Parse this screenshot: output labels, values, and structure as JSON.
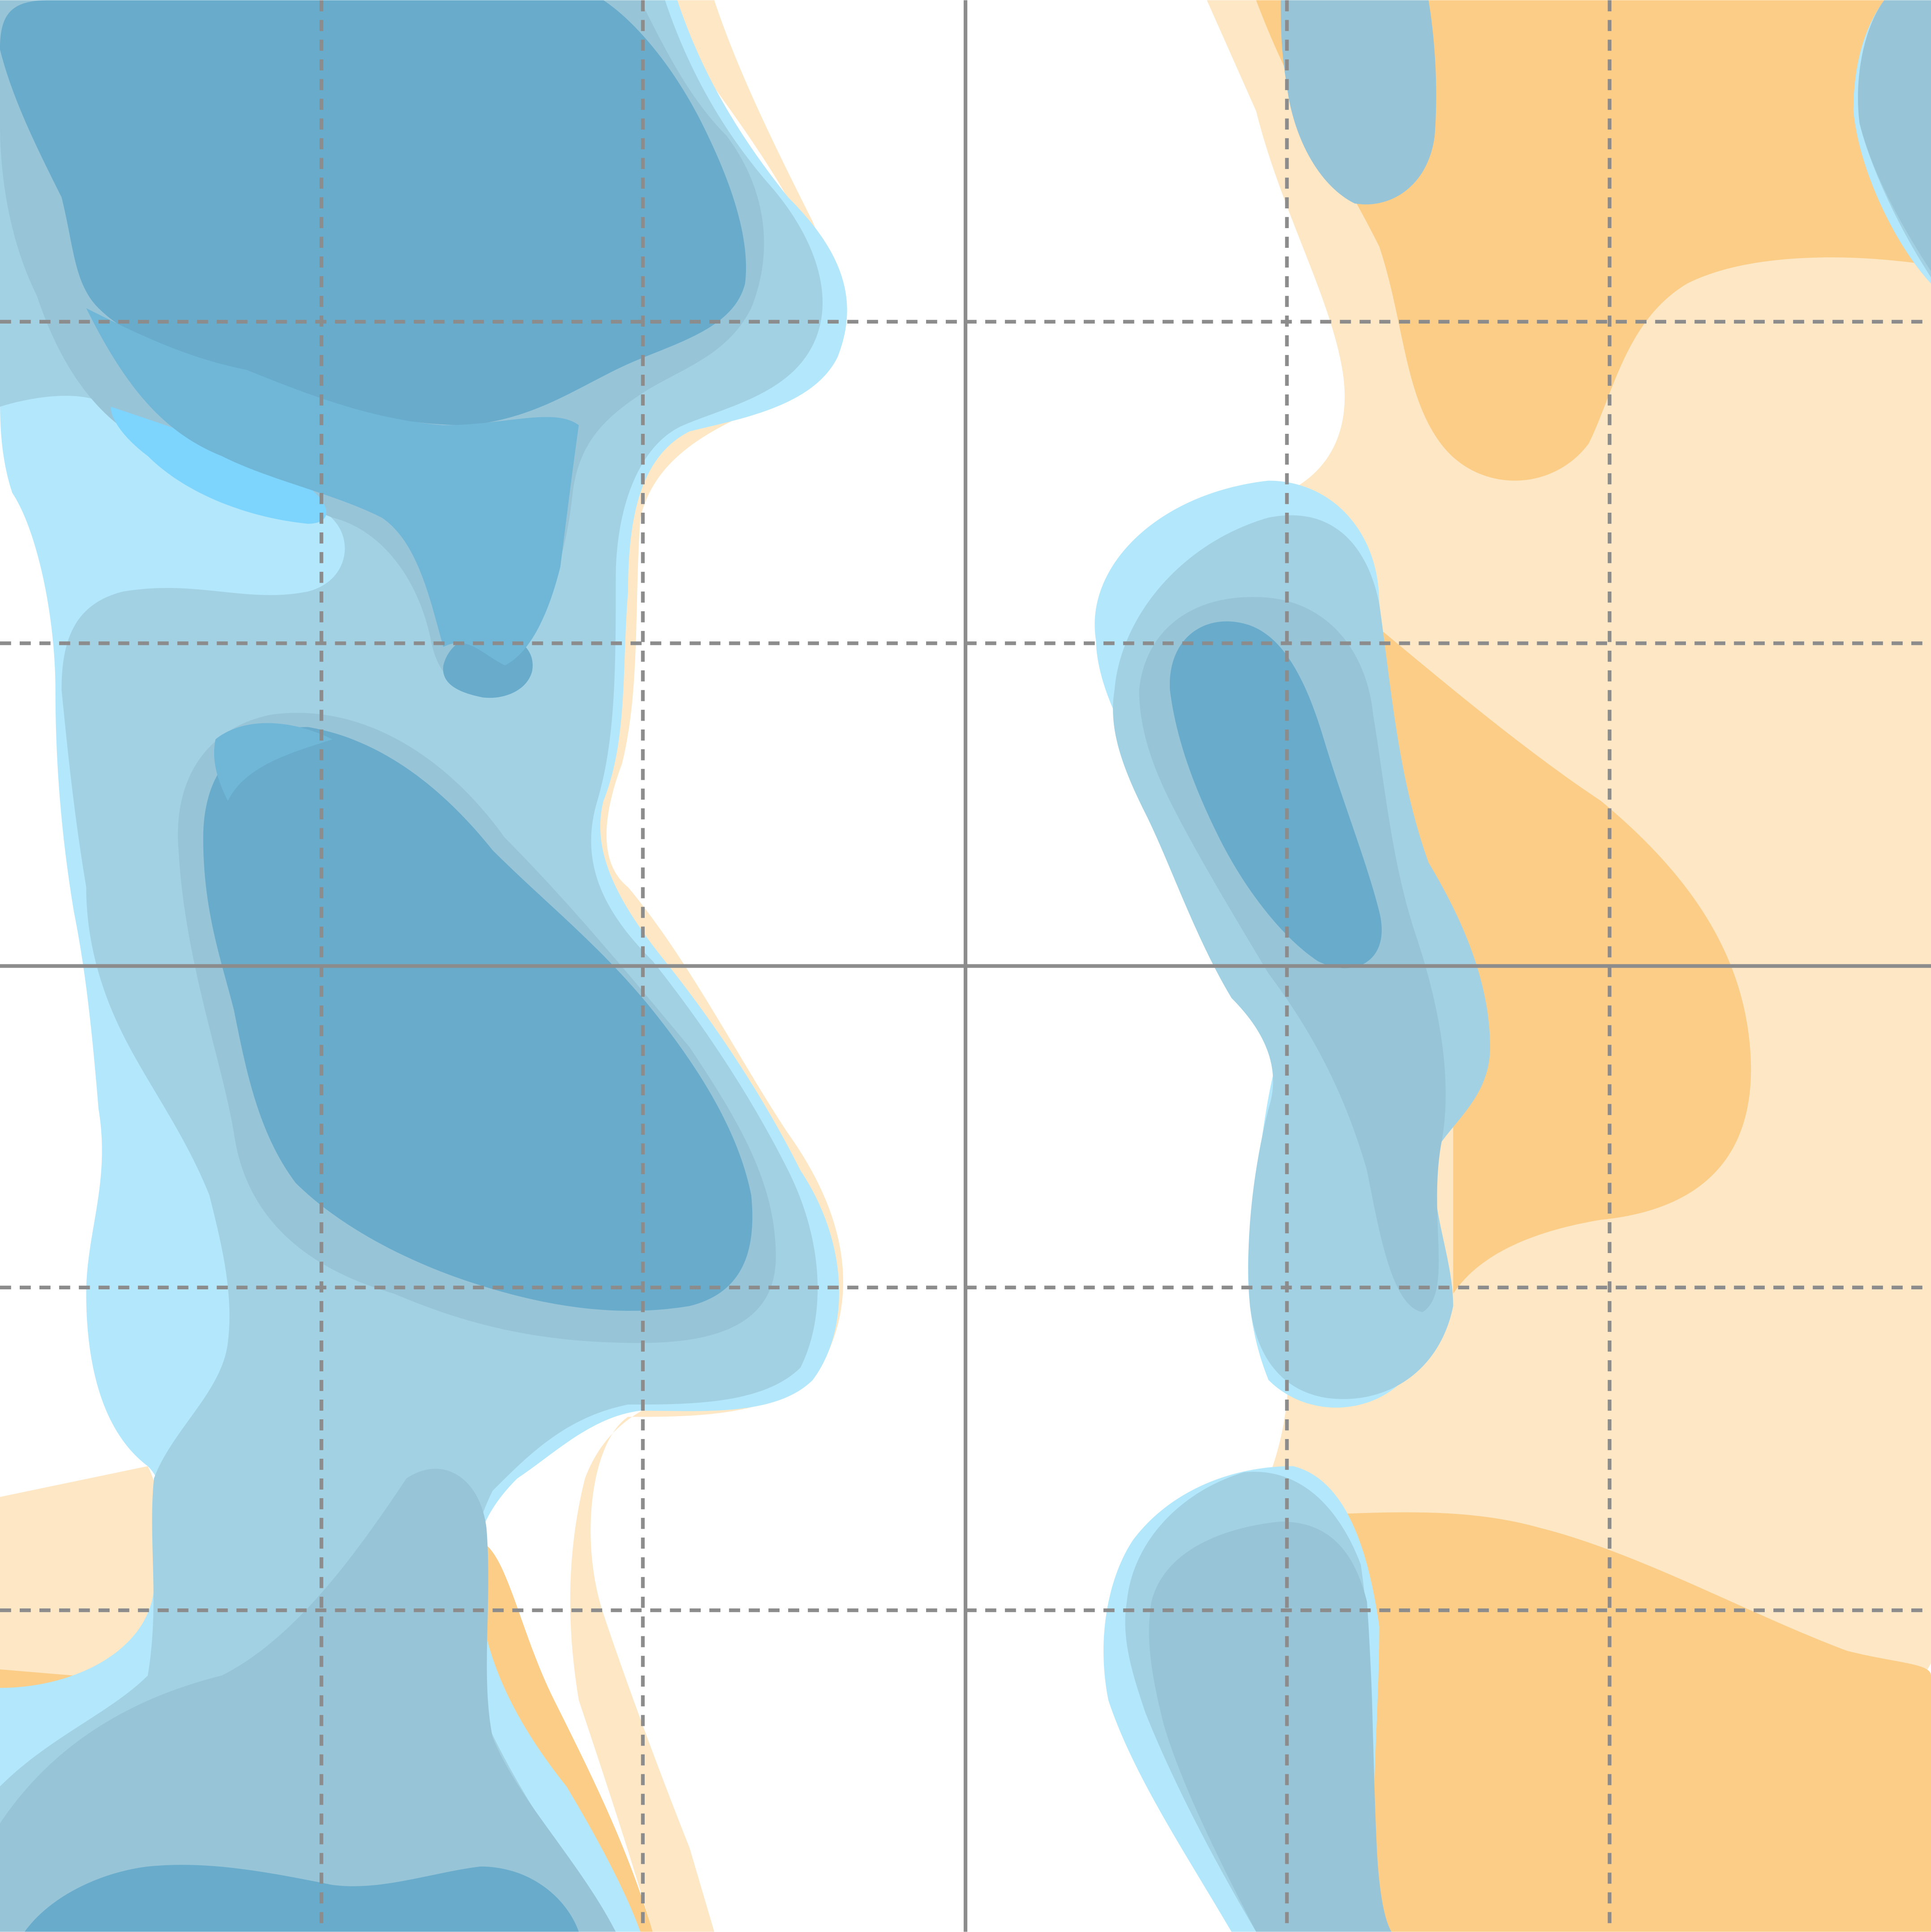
{
  "figure": {
    "kind": "contour-overlay-map",
    "text_labels": [],
    "colors": {
      "background": "#ffffff",
      "orange_light": "#fde7c5",
      "orange_mid": "#fccd86",
      "blue_lightest": "#b3e7fb",
      "blue_light": "#a2d1e3",
      "blue_mid": "#98c4d8",
      "blue_bright": "#7dd4fd",
      "blue_dark": "#68abcb",
      "blue_medium": "#6fb6d7",
      "grid_line": "#8c8c8c"
    },
    "grid": {
      "major_lines": "solid",
      "minor_lines": "dashed",
      "visible": true
    },
    "layers": [
      {
        "name": "orange-region-light",
        "color_key": "orange_light"
      },
      {
        "name": "orange-region-strong",
        "color_key": "orange_mid"
      },
      {
        "name": "blue-region-lightest",
        "color_key": "blue_lightest"
      },
      {
        "name": "blue-region-light",
        "color_key": "blue_light"
      },
      {
        "name": "blue-region-mid",
        "color_key": "blue_mid"
      },
      {
        "name": "blue-region-bright",
        "color_key": "blue_bright"
      },
      {
        "name": "blue-region-dark",
        "color_key": "blue_dark"
      },
      {
        "name": "blue-region-medium",
        "color_key": "blue_medium"
      }
    ]
  }
}
